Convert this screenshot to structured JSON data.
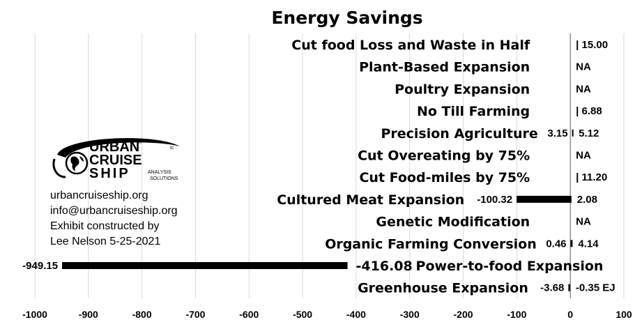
{
  "chart_data": {
    "type": "bar",
    "orientation": "horizontal",
    "title": "Energy Savings",
    "unit": "EJ",
    "categories": [
      "Cut food Loss and Waste in Half",
      "Plant-Based Expansion",
      "Poultry Expansion",
      "No Till Farming",
      "Precision Agriculture",
      "Cut Overeating by 75%",
      "Cut Food-miles by 75%",
      "Cultured Meat Expansion",
      "Genetic Modification",
      "Organic Farming Conversion",
      "Power-to-food Expansion",
      "Greenhouse Expansion"
    ],
    "low_values": [
      null,
      null,
      null,
      null,
      3.15,
      null,
      null,
      -100.32,
      null,
      0.46,
      -949.15,
      -3.68
    ],
    "high_values": [
      15.0,
      null,
      null,
      6.88,
      5.12,
      null,
      11.2,
      2.08,
      null,
      4.14,
      -416.08,
      -0.35
    ],
    "low_labels": [
      "",
      "",
      "",
      "",
      "3.15",
      "",
      "",
      "-100.32",
      "",
      "0.46",
      "-949.15",
      "-3.68"
    ],
    "high_labels": [
      "| 15.00",
      "NA",
      "NA",
      "| 6.88",
      "5.12",
      "NA",
      "| 11.20",
      "2.08",
      "NA",
      "4.14",
      "-416.08",
      "-0.35 EJ"
    ],
    "xlim": [
      -1000,
      100
    ],
    "xticks": [
      -1000,
      -900,
      -800,
      -700,
      -600,
      -500,
      -400,
      -300,
      -200,
      -100,
      0,
      100
    ],
    "xtick_labels": [
      "-1000",
      "-900",
      "-800",
      "-700",
      "-600",
      "-500",
      "-400",
      "-300",
      "-200",
      "-100",
      "0",
      "100"
    ],
    "grid": true,
    "legend": "none",
    "bar_color": "#000000"
  },
  "branding": {
    "logo_text": {
      "line1": "URBAN",
      "line2": "CRUISE",
      "line3": "SHIP",
      "tag1": "ANALYSIS",
      "tag2": "SOLUTIONS",
      "mark": "®",
      "mark2": "tc"
    },
    "info_lines": [
      "urbancruiseship.org",
      "info@urbancruiseship.org",
      "Exhibit constructed by",
      "Lee Nelson 5-25-2021"
    ]
  }
}
